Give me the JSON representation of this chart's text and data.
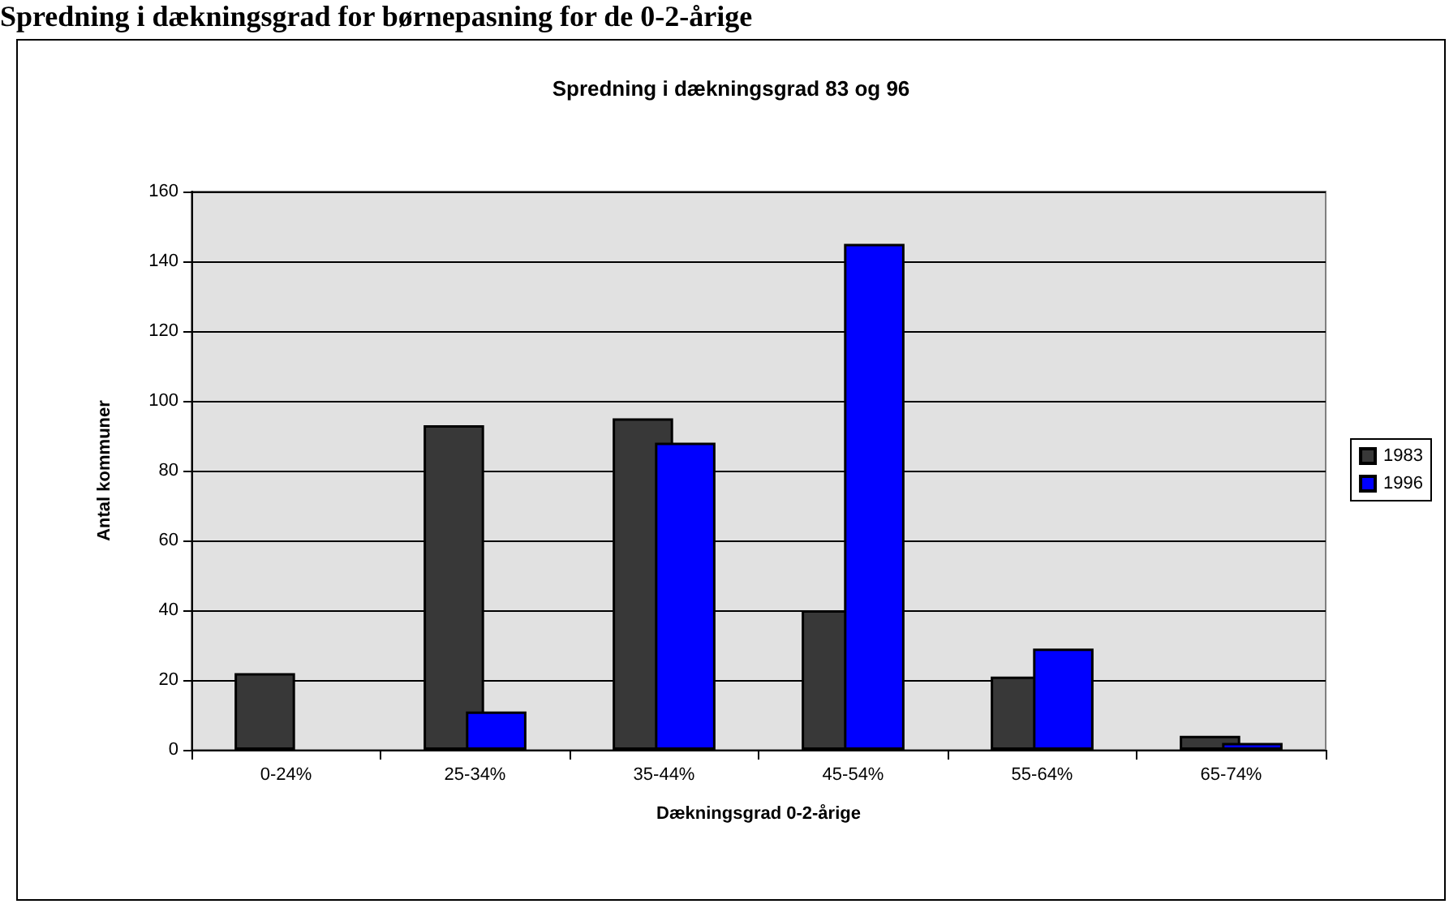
{
  "chart_data": {
    "type": "bar",
    "title": "Spredning i dækningsgrad 83 og 96",
    "annotations": [
      "Spredning i dækningsgrad for børnepasning for de 0-2-årige"
    ],
    "xlabel": "Dækningsgrad 0-2-årige",
    "ylabel": "Antal kommuner",
    "categories": [
      "0-24%",
      "25-34%",
      "35-44%",
      "45-54%",
      "55-64%",
      "65-74%"
    ],
    "series": [
      {
        "name": "1983",
        "color": "#383838",
        "values": [
          22,
          93,
          95,
          40,
          21,
          4
        ]
      },
      {
        "name": "1996",
        "color": "#0000ff",
        "values": [
          null,
          11,
          88,
          145,
          29,
          2
        ]
      }
    ],
    "ylim": [
      0,
      160
    ],
    "yticks": [
      0,
      20,
      40,
      60,
      80,
      100,
      120,
      140,
      160
    ],
    "grid": "y",
    "legend": "right"
  }
}
